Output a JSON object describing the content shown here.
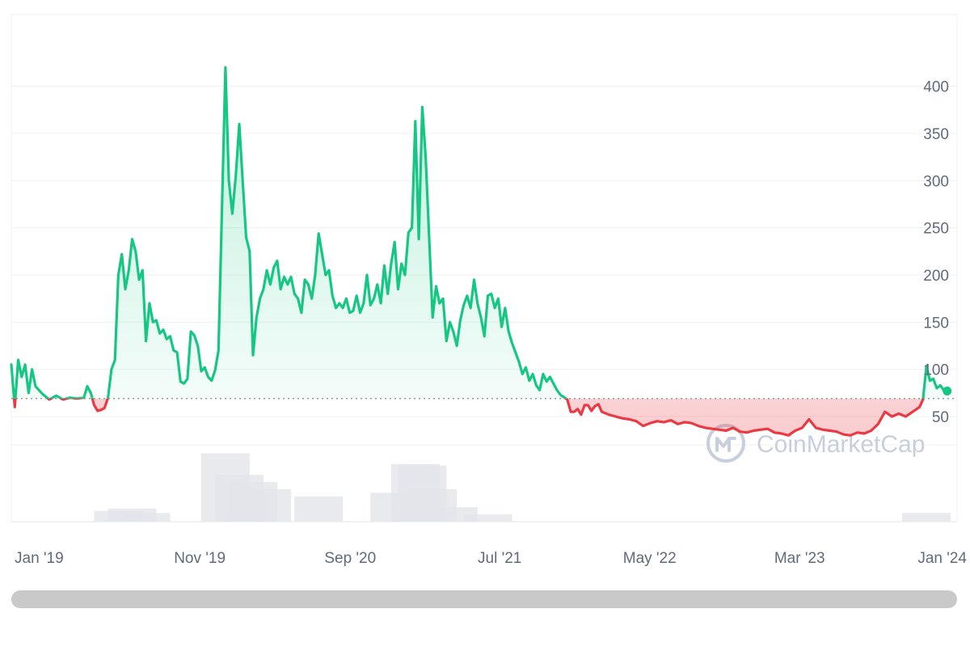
{
  "watermark": {
    "text": "CoinMarketCap",
    "icon": "coinmarketcap-logo-icon"
  },
  "colors": {
    "up": "#16c784",
    "down": "#ea3943",
    "grid": "#eef0f3",
    "volume": "#e3e5ea",
    "text": "#5f6b7c"
  },
  "chart_data": {
    "type": "line",
    "title": "",
    "xlabel": "",
    "ylabel": "",
    "baseline": 69,
    "ylim": [
      20,
      440
    ],
    "yticks": [
      50,
      100,
      150,
      200,
      250,
      300,
      350,
      400
    ],
    "xticks": [
      {
        "label": "Jan '19",
        "date": "2019-01-01"
      },
      {
        "label": "Nov '19",
        "date": "2019-11-01"
      },
      {
        "label": "Sep '20",
        "date": "2020-09-01"
      },
      {
        "label": "Jul '21",
        "date": "2021-07-01"
      },
      {
        "label": "May '22",
        "date": "2022-05-01"
      },
      {
        "label": "Mar '23",
        "date": "2023-03-01"
      },
      {
        "label": "Jan '24",
        "date": "2024-01-01"
      }
    ],
    "grid": true,
    "series": [
      {
        "points": [
          [
            "2018-10-15",
            105
          ],
          [
            "2018-10-22",
            60
          ],
          [
            "2018-10-29",
            110
          ],
          [
            "2018-11-05",
            92
          ],
          [
            "2018-11-12",
            105
          ],
          [
            "2018-11-19",
            75
          ],
          [
            "2018-11-26",
            100
          ],
          [
            "2018-12-03",
            82
          ],
          [
            "2018-12-17",
            74
          ],
          [
            "2018-12-31",
            68
          ],
          [
            "2019-01-14",
            72
          ],
          [
            "2019-01-28",
            68
          ],
          [
            "2019-02-11",
            70
          ],
          [
            "2019-02-25",
            69
          ],
          [
            "2019-03-11",
            70
          ],
          [
            "2019-03-18",
            82
          ],
          [
            "2019-03-25",
            75
          ],
          [
            "2019-04-01",
            62
          ],
          [
            "2019-04-08",
            56
          ],
          [
            "2019-04-15",
            57
          ],
          [
            "2019-04-22",
            59
          ],
          [
            "2019-04-29",
            70
          ],
          [
            "2019-05-06",
            100
          ],
          [
            "2019-05-13",
            110
          ],
          [
            "2019-05-20",
            200
          ],
          [
            "2019-05-27",
            222
          ],
          [
            "2019-06-03",
            185
          ],
          [
            "2019-06-10",
            205
          ],
          [
            "2019-06-17",
            238
          ],
          [
            "2019-06-24",
            225
          ],
          [
            "2019-07-01",
            195
          ],
          [
            "2019-07-08",
            205
          ],
          [
            "2019-07-15",
            130
          ],
          [
            "2019-07-22",
            170
          ],
          [
            "2019-07-29",
            150
          ],
          [
            "2019-08-05",
            152
          ],
          [
            "2019-08-12",
            138
          ],
          [
            "2019-08-19",
            142
          ],
          [
            "2019-08-26",
            132
          ],
          [
            "2019-09-02",
            135
          ],
          [
            "2019-09-09",
            120
          ],
          [
            "2019-09-16",
            118
          ],
          [
            "2019-09-23",
            87
          ],
          [
            "2019-09-30",
            85
          ],
          [
            "2019-10-07",
            90
          ],
          [
            "2019-10-14",
            140
          ],
          [
            "2019-10-21",
            136
          ],
          [
            "2019-10-28",
            125
          ],
          [
            "2019-11-04",
            98
          ],
          [
            "2019-11-11",
            102
          ],
          [
            "2019-11-18",
            92
          ],
          [
            "2019-11-25",
            88
          ],
          [
            "2019-12-02",
            99
          ],
          [
            "2019-12-09",
            120
          ],
          [
            "2019-12-23",
            420
          ],
          [
            "2019-12-30",
            300
          ],
          [
            "2020-01-06",
            265
          ],
          [
            "2020-01-13",
            305
          ],
          [
            "2020-01-20",
            360
          ],
          [
            "2020-01-27",
            300
          ],
          [
            "2020-02-03",
            240
          ],
          [
            "2020-02-10",
            225
          ],
          [
            "2020-02-17",
            115
          ],
          [
            "2020-02-24",
            155
          ],
          [
            "2020-03-02",
            175
          ],
          [
            "2020-03-09",
            185
          ],
          [
            "2020-03-16",
            205
          ],
          [
            "2020-03-23",
            190
          ],
          [
            "2020-03-30",
            208
          ],
          [
            "2020-04-06",
            215
          ],
          [
            "2020-04-13",
            185
          ],
          [
            "2020-04-20",
            198
          ],
          [
            "2020-04-27",
            190
          ],
          [
            "2020-05-04",
            198
          ],
          [
            "2020-05-11",
            180
          ],
          [
            "2020-05-18",
            175
          ],
          [
            "2020-05-25",
            160
          ],
          [
            "2020-06-01",
            195
          ],
          [
            "2020-06-08",
            190
          ],
          [
            "2020-06-15",
            175
          ],
          [
            "2020-06-22",
            200
          ],
          [
            "2020-06-29",
            244
          ],
          [
            "2020-07-06",
            222
          ],
          [
            "2020-07-13",
            200
          ],
          [
            "2020-07-20",
            205
          ],
          [
            "2020-07-27",
            178
          ],
          [
            "2020-08-03",
            165
          ],
          [
            "2020-08-10",
            170
          ],
          [
            "2020-08-17",
            165
          ],
          [
            "2020-08-24",
            175
          ],
          [
            "2020-08-31",
            160
          ],
          [
            "2020-09-07",
            162
          ],
          [
            "2020-09-14",
            178
          ],
          [
            "2020-09-21",
            160
          ],
          [
            "2020-09-28",
            170
          ],
          [
            "2020-10-05",
            200
          ],
          [
            "2020-10-12",
            168
          ],
          [
            "2020-10-19",
            175
          ],
          [
            "2020-10-26",
            190
          ],
          [
            "2020-11-02",
            170
          ],
          [
            "2020-11-09",
            210
          ],
          [
            "2020-11-16",
            180
          ],
          [
            "2020-11-23",
            212
          ],
          [
            "2020-11-30",
            235
          ],
          [
            "2020-12-07",
            185
          ],
          [
            "2020-12-14",
            212
          ],
          [
            "2020-12-21",
            200
          ],
          [
            "2020-12-28",
            245
          ],
          [
            "2021-01-04",
            250
          ],
          [
            "2021-01-11",
            363
          ],
          [
            "2021-01-18",
            238
          ],
          [
            "2021-01-25",
            378
          ],
          [
            "2021-02-01",
            325
          ],
          [
            "2021-02-08",
            240
          ],
          [
            "2021-02-15",
            155
          ],
          [
            "2021-02-22",
            188
          ],
          [
            "2021-03-01",
            170
          ],
          [
            "2021-03-08",
            175
          ],
          [
            "2021-03-15",
            130
          ],
          [
            "2021-03-22",
            150
          ],
          [
            "2021-03-29",
            140
          ],
          [
            "2021-04-05",
            125
          ],
          [
            "2021-04-12",
            152
          ],
          [
            "2021-04-19",
            168
          ],
          [
            "2021-04-26",
            178
          ],
          [
            "2021-05-03",
            165
          ],
          [
            "2021-05-10",
            195
          ],
          [
            "2021-05-17",
            170
          ],
          [
            "2021-05-24",
            155
          ],
          [
            "2021-05-31",
            135
          ],
          [
            "2021-06-07",
            178
          ],
          [
            "2021-06-14",
            180
          ],
          [
            "2021-06-21",
            165
          ],
          [
            "2021-06-28",
            175
          ],
          [
            "2021-07-05",
            145
          ],
          [
            "2021-07-12",
            165
          ],
          [
            "2021-07-19",
            140
          ],
          [
            "2021-07-26",
            128
          ],
          [
            "2021-08-02",
            118
          ],
          [
            "2021-08-09",
            108
          ],
          [
            "2021-08-16",
            95
          ],
          [
            "2021-08-23",
            102
          ],
          [
            "2021-08-30",
            88
          ],
          [
            "2021-09-06",
            95
          ],
          [
            "2021-09-13",
            83
          ],
          [
            "2021-09-20",
            78
          ],
          [
            "2021-09-27",
            95
          ],
          [
            "2021-10-04",
            87
          ],
          [
            "2021-10-11",
            92
          ],
          [
            "2021-10-18",
            85
          ],
          [
            "2021-10-25",
            78
          ],
          [
            "2021-11-01",
            73
          ],
          [
            "2021-11-15",
            68
          ],
          [
            "2021-11-22",
            55
          ],
          [
            "2021-11-29",
            55
          ],
          [
            "2021-12-06",
            58
          ],
          [
            "2021-12-13",
            52
          ],
          [
            "2021-12-20",
            62
          ],
          [
            "2021-12-27",
            62
          ],
          [
            "2022-01-03",
            56
          ],
          [
            "2022-01-10",
            61
          ],
          [
            "2022-01-17",
            63
          ],
          [
            "2022-01-24",
            55
          ],
          [
            "2022-02-07",
            52
          ],
          [
            "2022-02-21",
            50
          ],
          [
            "2022-03-07",
            48
          ],
          [
            "2022-03-21",
            47
          ],
          [
            "2022-04-04",
            45
          ],
          [
            "2022-04-18",
            40
          ],
          [
            "2022-05-02",
            43
          ],
          [
            "2022-05-16",
            45
          ],
          [
            "2022-05-30",
            44
          ],
          [
            "2022-06-13",
            46
          ],
          [
            "2022-06-27",
            42
          ],
          [
            "2022-07-11",
            44
          ],
          [
            "2022-07-25",
            43
          ],
          [
            "2022-08-08",
            40
          ],
          [
            "2022-08-22",
            38
          ],
          [
            "2022-09-05",
            37
          ],
          [
            "2022-09-19",
            36
          ],
          [
            "2022-10-03",
            35
          ],
          [
            "2022-10-17",
            38
          ],
          [
            "2022-10-31",
            34
          ],
          [
            "2022-11-14",
            33
          ],
          [
            "2022-11-28",
            35
          ],
          [
            "2022-12-12",
            36
          ],
          [
            "2022-12-26",
            37
          ],
          [
            "2023-01-09",
            33
          ],
          [
            "2023-01-23",
            32
          ],
          [
            "2023-02-06",
            30
          ],
          [
            "2023-02-20",
            35
          ],
          [
            "2023-03-06",
            38
          ],
          [
            "2023-03-20",
            47
          ],
          [
            "2023-04-03",
            38
          ],
          [
            "2023-04-17",
            36
          ],
          [
            "2023-05-01",
            35
          ],
          [
            "2023-05-15",
            34
          ],
          [
            "2023-05-29",
            31
          ],
          [
            "2023-06-12",
            30
          ],
          [
            "2023-06-26",
            33
          ],
          [
            "2023-07-10",
            32
          ],
          [
            "2023-07-24",
            35
          ],
          [
            "2023-08-07",
            42
          ],
          [
            "2023-08-21",
            55
          ],
          [
            "2023-09-04",
            50
          ],
          [
            "2023-09-18",
            53
          ],
          [
            "2023-10-02",
            50
          ],
          [
            "2023-10-16",
            55
          ],
          [
            "2023-10-30",
            60
          ],
          [
            "2023-11-06",
            68
          ],
          [
            "2023-11-13",
            103
          ],
          [
            "2023-11-20",
            88
          ],
          [
            "2023-11-27",
            90
          ],
          [
            "2023-12-04",
            80
          ],
          [
            "2023-12-11",
            83
          ],
          [
            "2023-12-18",
            78
          ],
          [
            "2023-12-25",
            77
          ]
        ]
      }
    ],
    "volume_bars": [
      [
        "2019-05-20",
        0.15
      ],
      [
        "2019-06-17",
        0.18
      ],
      [
        "2019-07-15",
        0.12
      ],
      [
        "2019-12-23",
        0.95
      ],
      [
        "2020-01-20",
        0.65
      ],
      [
        "2020-02-17",
        0.55
      ],
      [
        "2020-03-16",
        0.45
      ],
      [
        "2020-06-29",
        0.35
      ],
      [
        "2020-11-30",
        0.4
      ],
      [
        "2021-01-11",
        0.8
      ],
      [
        "2021-01-25",
        0.78
      ],
      [
        "2021-02-15",
        0.45
      ],
      [
        "2021-03-29",
        0.2
      ],
      [
        "2021-06-07",
        0.1
      ],
      [
        "2023-11-13",
        0.12
      ]
    ]
  }
}
